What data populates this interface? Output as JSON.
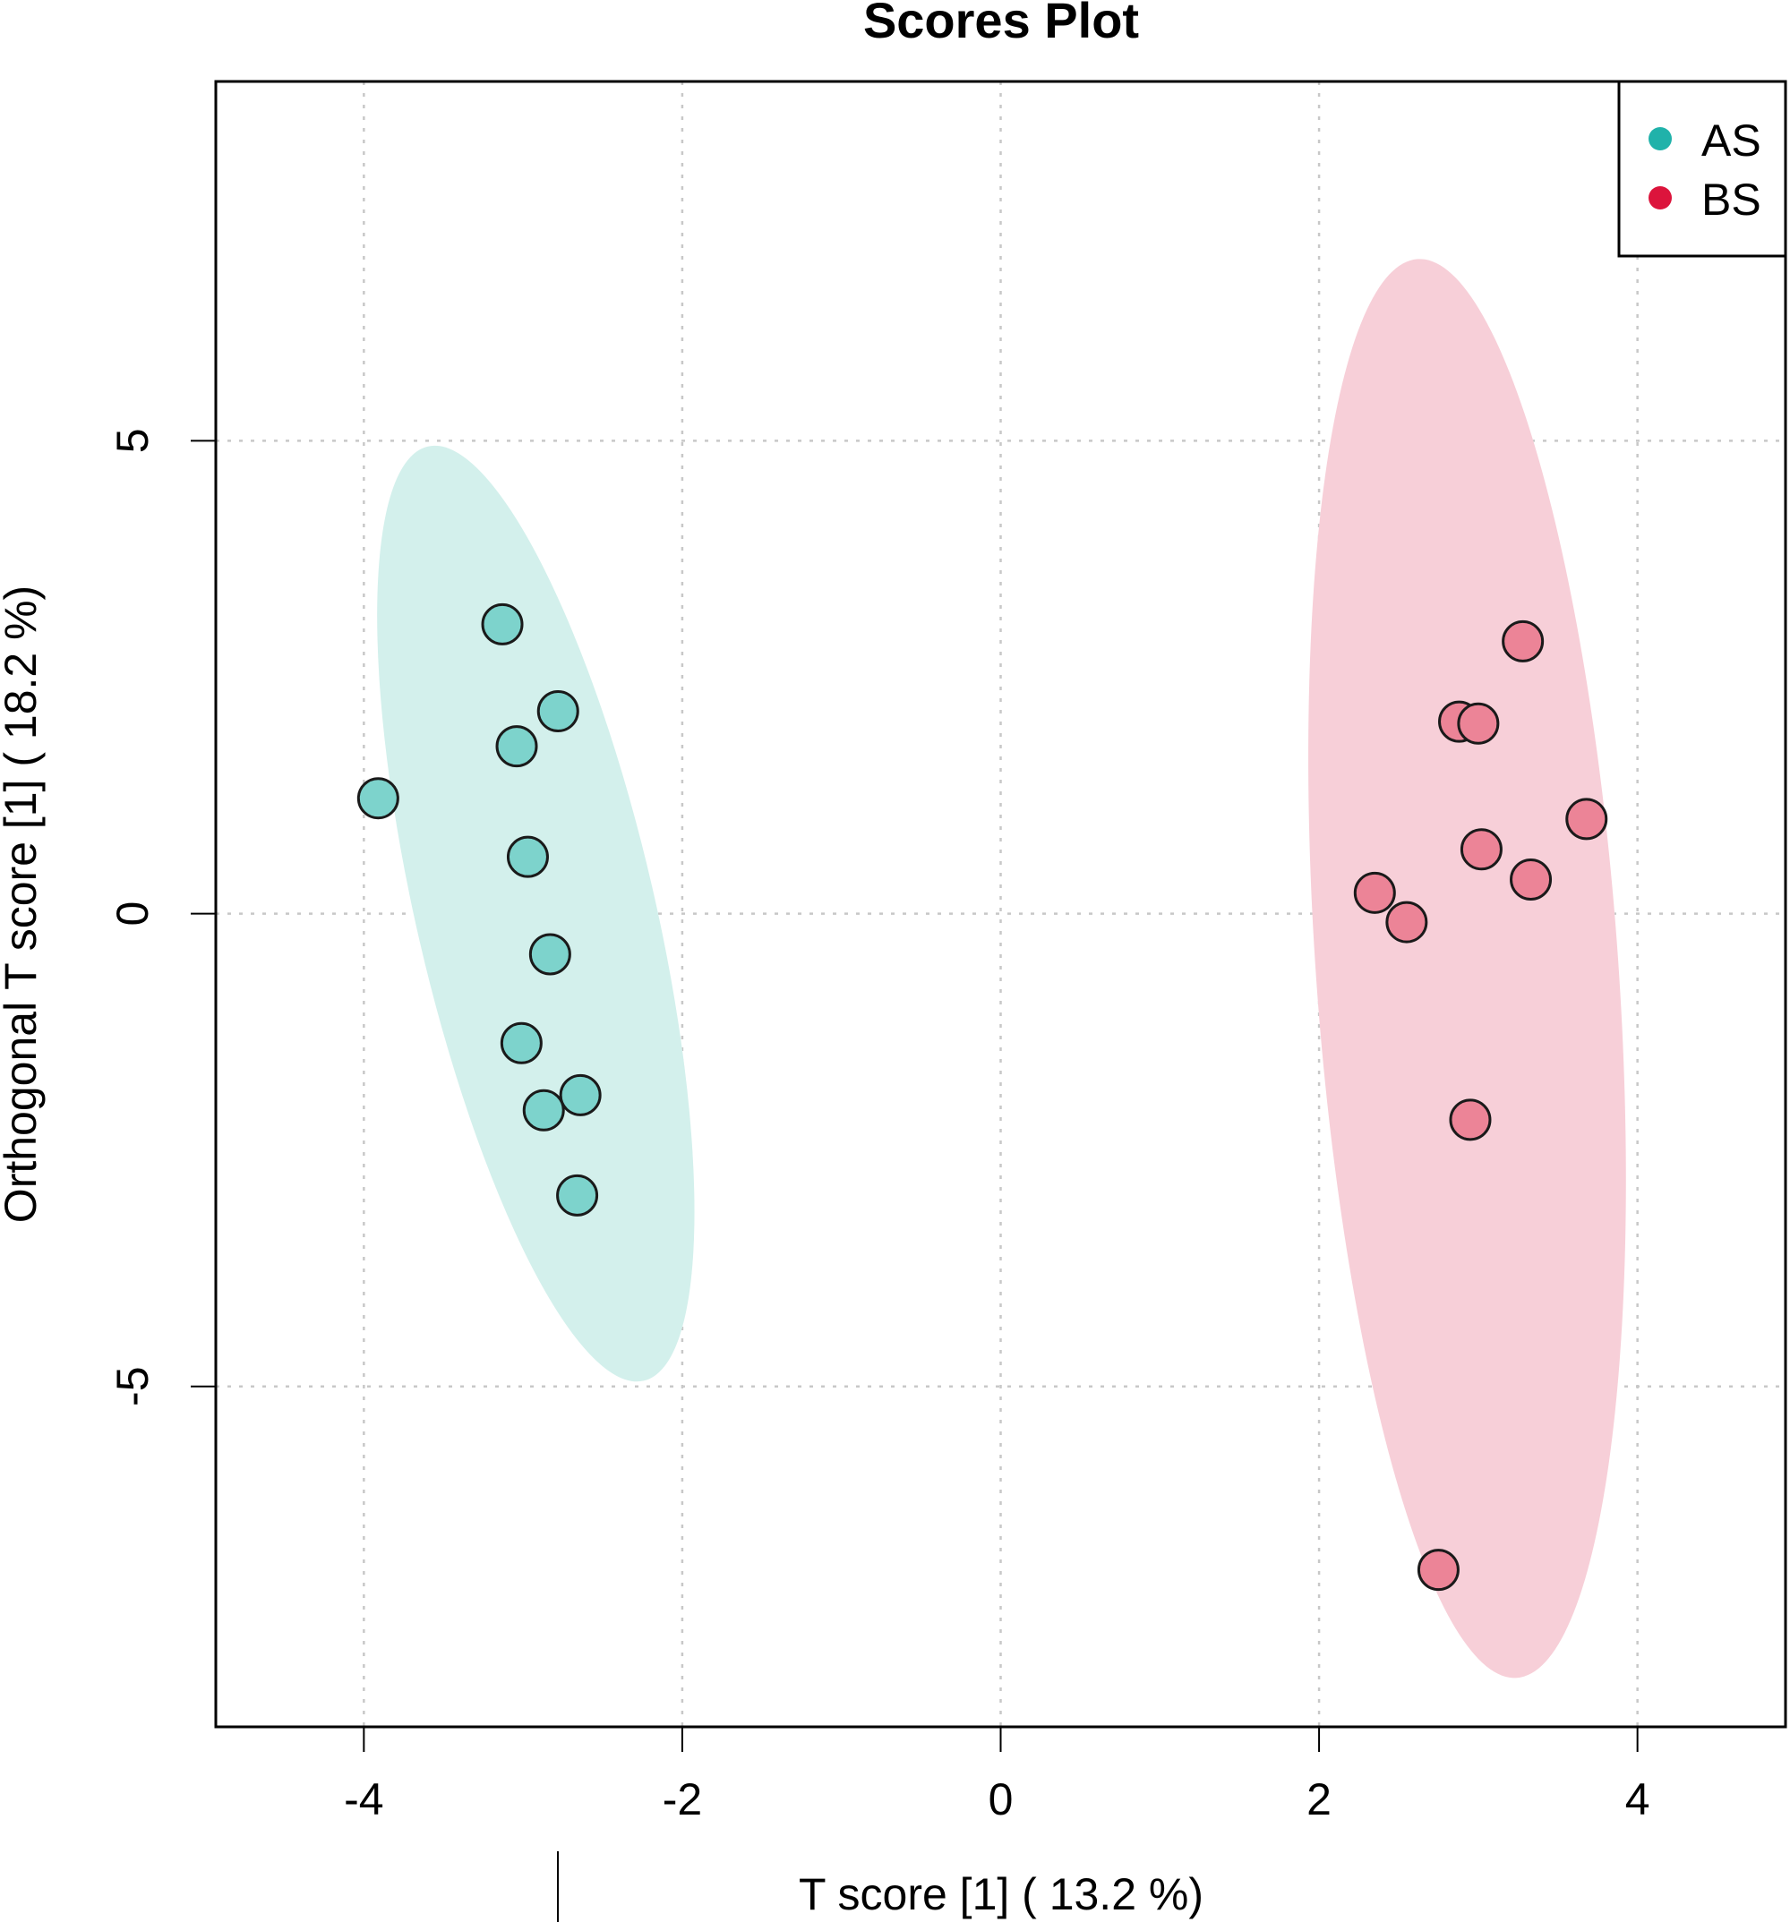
{
  "chart_data": {
    "type": "scatter",
    "title": "Scores Plot",
    "xlabel": "T score [1] ( 13.2 %)",
    "ylabel": "Orthogonal T score [1] ( 18.2 %)",
    "xlim": [
      -4.93,
      4.93
    ],
    "ylim": [
      -8.6,
      8.8
    ],
    "x_ticks": [
      -4,
      -2,
      0,
      2,
      4
    ],
    "y_ticks": [
      -5,
      0,
      5
    ],
    "x_tick_labels": [
      "-4",
      "-2",
      "0",
      "2",
      "4"
    ],
    "y_tick_labels": [
      "-5",
      "0",
      "5"
    ],
    "grid": true,
    "legend_position": "top-right",
    "series": [
      {
        "name": "AS",
        "color": "#20B2AA",
        "point_fill": "#7dd3cc",
        "ellipse_fill": "#d3f0ec",
        "ellipse": {
          "cx": -2.92,
          "cy": 0.0,
          "rx": 0.75,
          "ry": 5.07,
          "angle_deg": -13
        },
        "points": [
          {
            "x": -3.91,
            "y": 1.22
          },
          {
            "x": -3.13,
            "y": 3.06
          },
          {
            "x": -2.78,
            "y": 2.14
          },
          {
            "x": -3.04,
            "y": 1.77
          },
          {
            "x": -2.97,
            "y": 0.6
          },
          {
            "x": -2.83,
            "y": -0.43
          },
          {
            "x": -3.01,
            "y": -1.37
          },
          {
            "x": -2.64,
            "y": -1.92
          },
          {
            "x": -2.87,
            "y": -2.08
          },
          {
            "x": -2.66,
            "y": -2.98
          }
        ]
      },
      {
        "name": "BS",
        "color": "#DC143C",
        "point_fill": "#ec8497",
        "ellipse_fill": "#f7cfd8",
        "ellipse": {
          "cx": 2.93,
          "cy": -0.58,
          "rx": 0.95,
          "ry": 7.52,
          "angle_deg": -4
        },
        "points": [
          {
            "x": 3.28,
            "y": 2.88
          },
          {
            "x": 2.88,
            "y": 2.03
          },
          {
            "x": 3.0,
            "y": 2.01
          },
          {
            "x": 3.68,
            "y": 1.0
          },
          {
            "x": 3.02,
            "y": 0.68
          },
          {
            "x": 3.33,
            "y": 0.36
          },
          {
            "x": 2.35,
            "y": 0.22
          },
          {
            "x": 2.55,
            "y": -0.09
          },
          {
            "x": 2.95,
            "y": -2.18
          },
          {
            "x": 2.75,
            "y": -6.94
          }
        ]
      }
    ]
  }
}
